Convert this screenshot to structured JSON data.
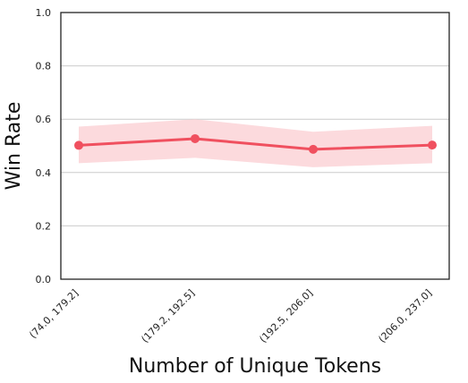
{
  "chart_data": {
    "type": "line",
    "title": "",
    "xlabel": "Number of Unique Tokens",
    "ylabel": "Win Rate",
    "categories": [
      "(74.0, 179.2]",
      "(179.2, 192.5]",
      "(192.5, 206.0]",
      "(206.0, 237.0]"
    ],
    "series": [
      {
        "name": "",
        "values": [
          0.502,
          0.527,
          0.487,
          0.503
        ],
        "ci_lower": [
          0.435,
          0.455,
          0.42,
          0.435
        ],
        "ci_upper": [
          0.572,
          0.6,
          0.553,
          0.575
        ],
        "color": "#f0505f",
        "band_color": "#fbd3d7"
      }
    ],
    "ylim": [
      0.0,
      1.0
    ],
    "yticks": [
      "0.0",
      "0.2",
      "0.4",
      "0.6",
      "0.8",
      "1.0"
    ],
    "grid": "horizontal",
    "legend": "none"
  }
}
